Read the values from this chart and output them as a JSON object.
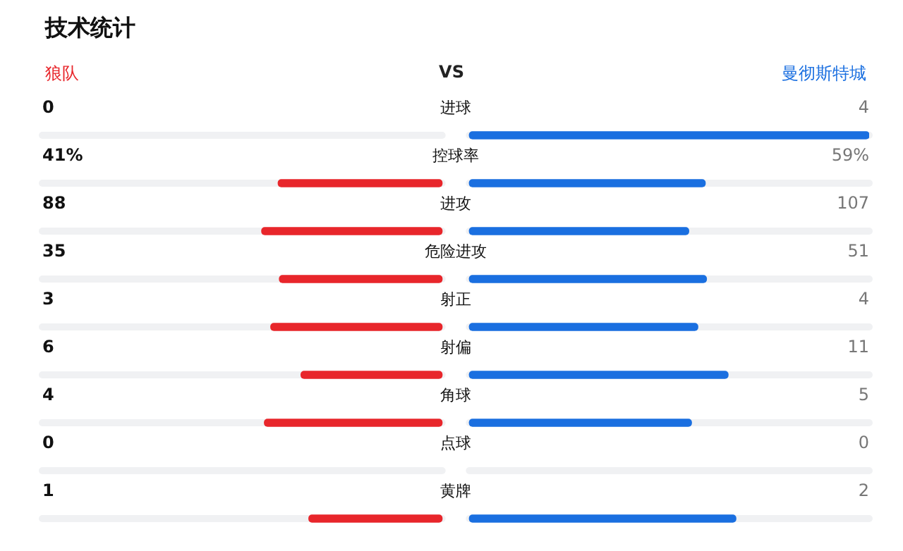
{
  "chart_data": {
    "type": "other",
    "title": "技术统计",
    "annotations": [
      "VS"
    ],
    "categories": [
      "进球",
      "控球率",
      "进攻",
      "危险进攻",
      "射正",
      "射偏",
      "角球",
      "点球",
      "黄牌"
    ],
    "series": [
      {
        "name": "狼队",
        "color": "#e8262b",
        "values": [
          0,
          41,
          88,
          35,
          3,
          6,
          4,
          0,
          1
        ],
        "value_labels": [
          "0",
          "41%",
          "88",
          "35",
          "3",
          "6",
          "4",
          "0",
          "1"
        ]
      },
      {
        "name": "曼彻斯特城",
        "color": "#1a6fe0",
        "values": [
          4,
          59,
          107,
          51,
          4,
          11,
          5,
          0,
          2
        ],
        "value_labels": [
          "4",
          "59%",
          "107",
          "51",
          "4",
          "11",
          "5",
          "0",
          "2"
        ]
      }
    ]
  }
}
